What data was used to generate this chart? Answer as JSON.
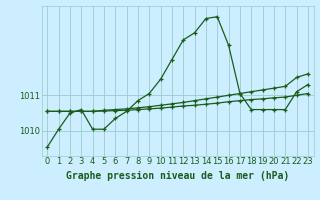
{
  "title": "Graphe pression niveau de la mer (hPa)",
  "bg_color": "#cceeff",
  "line_color": "#1a5c1a",
  "grid_color": "#99cccc",
  "xlim": [
    -0.5,
    23.5
  ],
  "ylim": [
    1009.3,
    1013.5
  ],
  "xticks": [
    0,
    1,
    2,
    3,
    4,
    5,
    6,
    7,
    8,
    9,
    10,
    11,
    12,
    13,
    14,
    15,
    16,
    17,
    18,
    19,
    20,
    21,
    22,
    23
  ],
  "yticks": [
    1010,
    1011
  ],
  "line1_x": [
    0,
    1,
    2,
    3,
    4,
    5,
    6,
    7,
    8,
    9,
    10,
    11,
    12,
    13,
    14,
    15,
    16,
    17,
    18,
    19,
    20,
    21,
    22,
    23
  ],
  "line1_y": [
    1009.55,
    1010.05,
    1010.5,
    1010.6,
    1010.05,
    1010.05,
    1010.35,
    1010.55,
    1010.85,
    1011.05,
    1011.45,
    1012.0,
    1012.55,
    1012.75,
    1013.15,
    1013.2,
    1012.4,
    1011.05,
    1010.6,
    1010.6,
    1010.6,
    1010.6,
    1011.1,
    1011.3
  ],
  "line2_x": [
    0,
    1,
    2,
    3,
    4,
    5,
    6,
    7,
    8,
    9,
    10,
    11,
    12,
    13,
    14,
    15,
    16,
    17,
    18,
    19,
    20,
    21,
    22,
    23
  ],
  "line2_y": [
    1010.55,
    1010.55,
    1010.55,
    1010.55,
    1010.55,
    1010.58,
    1010.6,
    1010.62,
    1010.65,
    1010.68,
    1010.72,
    1010.76,
    1010.8,
    1010.85,
    1010.9,
    1010.95,
    1011.0,
    1011.05,
    1011.1,
    1011.15,
    1011.2,
    1011.25,
    1011.5,
    1011.6
  ],
  "line3_x": [
    0,
    1,
    2,
    3,
    4,
    5,
    6,
    7,
    8,
    9,
    10,
    11,
    12,
    13,
    14,
    15,
    16,
    17,
    18,
    19,
    20,
    21,
    22,
    23
  ],
  "line3_y": [
    1010.55,
    1010.55,
    1010.55,
    1010.55,
    1010.55,
    1010.56,
    1010.57,
    1010.58,
    1010.6,
    1010.62,
    1010.64,
    1010.67,
    1010.7,
    1010.72,
    1010.75,
    1010.78,
    1010.82,
    1010.85,
    1010.88,
    1010.9,
    1010.93,
    1010.95,
    1011.0,
    1011.05
  ],
  "tick_fontsize": 6,
  "xlabel_fontsize": 7,
  "title_fontsize": 7
}
